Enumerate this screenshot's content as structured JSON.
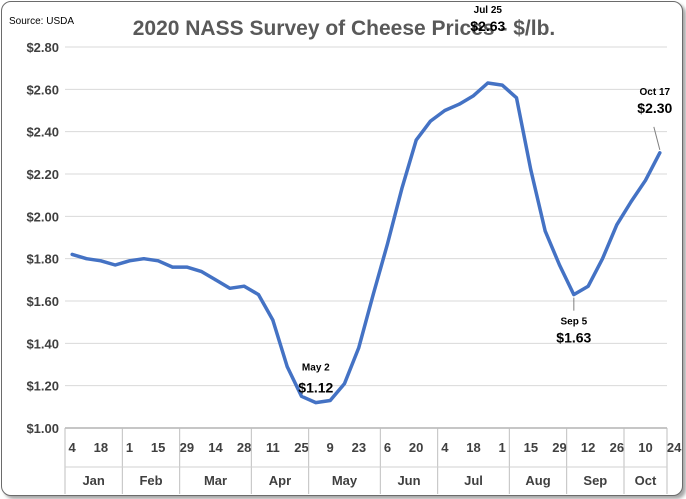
{
  "chart_data": {
    "type": "line",
    "title": "2020 NASS Survey of Cheese Prices - $/lb.",
    "source": "Source: USDA",
    "xlabel": "",
    "ylabel": "",
    "ylim": [
      1.0,
      2.8
    ],
    "yticks": [
      "$1.00",
      "$1.20",
      "$1.40",
      "$1.60",
      "$1.80",
      "$2.00",
      "$2.20",
      "$2.40",
      "$2.60",
      "$2.80"
    ],
    "grid": true,
    "legend": "none",
    "color": "#4472C4",
    "week_labels": [
      "4",
      "18",
      "1",
      "15",
      "29",
      "14",
      "28",
      "11",
      "25",
      "9",
      "23",
      "6",
      "20",
      "4",
      "18",
      "1",
      "15",
      "29",
      "12",
      "26",
      "10",
      "24"
    ],
    "months": [
      "Jan",
      "Feb",
      "Mar",
      "Apr",
      "May",
      "Jun",
      "Jul",
      "Aug",
      "Sep",
      "Oct"
    ],
    "month_week_index": [
      0,
      4,
      8,
      13,
      17,
      22,
      26,
      31,
      35,
      39
    ],
    "series": [
      {
        "name": "Cheese Price",
        "values": [
          1.82,
          1.8,
          1.79,
          1.77,
          1.79,
          1.8,
          1.79,
          1.76,
          1.76,
          1.74,
          1.7,
          1.66,
          1.67,
          1.63,
          1.51,
          1.29,
          1.15,
          1.12,
          1.13,
          1.21,
          1.38,
          1.63,
          1.87,
          2.13,
          2.36,
          2.45,
          2.5,
          2.53,
          2.57,
          2.63,
          2.62,
          2.56,
          2.22,
          1.93,
          1.77,
          1.63,
          1.67,
          1.8,
          1.96,
          2.07,
          2.17,
          2.3
        ]
      }
    ],
    "annotations": [
      {
        "date": "May 2",
        "value": "$1.12",
        "index": 17
      },
      {
        "date": "Jul 25",
        "value": "$2.63",
        "index": 29
      },
      {
        "date": "Sep 5",
        "value": "$1.63",
        "index": 35
      },
      {
        "date": "Oct 17",
        "value": "$2.30",
        "index": 41
      }
    ]
  }
}
